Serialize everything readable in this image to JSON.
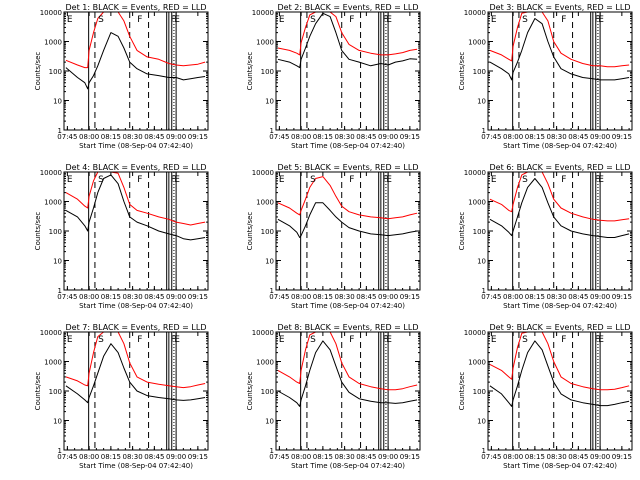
{
  "figure": {
    "background": "#ffffff",
    "axis_color": "#000000",
    "events_color": "#000000",
    "lld_color": "#ff0000"
  },
  "chart_data": [
    {
      "type": "line",
      "title": "Det 1: BLACK = Events, RED = LLD",
      "xlabel": "Start Time (08-Sep-04 07:42:40)",
      "ylabel": "Counts/sec",
      "yscale": "log",
      "ylim": [
        1,
        10000
      ],
      "yticks": [
        "1",
        "10",
        "100",
        "1000",
        "10000"
      ],
      "xticks": [
        "07:45",
        "08:00",
        "08:15",
        "08:30",
        "08:45",
        "09:00",
        "09:15"
      ],
      "xlim": [
        "07:42:40",
        "09:22:00"
      ],
      "flags": [
        "E",
        "S",
        "F",
        "F",
        "E"
      ],
      "x": [
        "07:44",
        "07:52",
        "07:57",
        "07:59",
        "08:00",
        "08:03",
        "08:06",
        "08:10",
        "08:15",
        "08:20",
        "08:24",
        "08:28",
        "08:33",
        "08:40",
        "08:48",
        "08:55",
        "09:00",
        "09:05",
        "09:10",
        "09:15",
        "09:20"
      ],
      "series": [
        {
          "name": "Events",
          "values": [
            130,
            60,
            40,
            25,
            40,
            70,
            150,
            500,
            2000,
            1500,
            600,
            200,
            120,
            80,
            70,
            60,
            60,
            50,
            55,
            60,
            65
          ]
        },
        {
          "name": "LLD",
          "values": [
            230,
            160,
            130,
            130,
            500,
            2000,
            6000,
            12000,
            12000,
            10000,
            5000,
            1500,
            500,
            300,
            250,
            180,
            160,
            150,
            160,
            170,
            200
          ]
        }
      ]
    },
    {
      "type": "line",
      "title": "Det 2: BLACK = Events, RED = LLD",
      "xlabel": "Start Time (08-Sep-04 07:42:40)",
      "ylabel": "Counts/sec",
      "yscale": "log",
      "ylim": [
        1,
        10000
      ],
      "yticks": [
        "1",
        "10",
        "100",
        "1000",
        "10000"
      ],
      "xticks": [
        "07:45",
        "08:00",
        "08:15",
        "08:30",
        "08:45",
        "09:00",
        "09:15"
      ],
      "xlim": [
        "07:42:40",
        "09:22:00"
      ],
      "flags": [
        "E",
        "S",
        "F",
        "F",
        "E"
      ],
      "x": [
        "07:44",
        "07:52",
        "07:57",
        "07:59",
        "08:00",
        "08:03",
        "08:06",
        "08:10",
        "08:15",
        "08:20",
        "08:24",
        "08:28",
        "08:33",
        "08:40",
        "08:48",
        "08:55",
        "09:00",
        "09:05",
        "09:10",
        "09:15",
        "09:20"
      ],
      "series": [
        {
          "name": "Events",
          "values": [
            250,
            200,
            150,
            130,
            250,
            600,
            1500,
            4000,
            9000,
            7000,
            2000,
            500,
            250,
            200,
            150,
            180,
            160,
            200,
            220,
            260,
            250
          ]
        },
        {
          "name": "LLD",
          "values": [
            600,
            500,
            400,
            350,
            900,
            3000,
            8000,
            12000,
            12000,
            11000,
            7000,
            2000,
            800,
            500,
            400,
            350,
            350,
            380,
            420,
            500,
            550
          ]
        }
      ]
    },
    {
      "type": "line",
      "title": "Det 3: BLACK = Events, RED = LLD",
      "xlabel": "Start Time (08-Sep-04 07:42:40)",
      "ylabel": "Counts/sec",
      "yscale": "log",
      "ylim": [
        1,
        10000
      ],
      "yticks": [
        "1",
        "10",
        "100",
        "1000",
        "10000"
      ],
      "xticks": [
        "07:45",
        "08:00",
        "08:15",
        "08:30",
        "08:45",
        "09:00",
        "09:15"
      ],
      "xlim": [
        "07:42:40",
        "09:22:00"
      ],
      "flags": [
        "E",
        "S",
        "F",
        "F",
        "E"
      ],
      "x": [
        "07:44",
        "07:52",
        "07:57",
        "07:59",
        "08:00",
        "08:03",
        "08:06",
        "08:10",
        "08:15",
        "08:20",
        "08:24",
        "08:28",
        "08:33",
        "08:40",
        "08:48",
        "08:55",
        "09:00",
        "09:05",
        "09:10",
        "09:15",
        "09:20"
      ],
      "series": [
        {
          "name": "Events",
          "values": [
            200,
            120,
            80,
            50,
            90,
            200,
            500,
            2000,
            6000,
            4000,
            1000,
            300,
            120,
            80,
            60,
            55,
            50,
            50,
            50,
            55,
            60
          ]
        },
        {
          "name": "LLD",
          "values": [
            500,
            350,
            250,
            220,
            700,
            3000,
            9000,
            12000,
            12000,
            11000,
            5000,
            1000,
            400,
            250,
            180,
            150,
            150,
            140,
            140,
            150,
            160
          ]
        }
      ]
    },
    {
      "type": "line",
      "title": "Det 4: BLACK = Events, RED = LLD",
      "xlabel": "Start Time (08-Sep-04 07:42:40)",
      "ylabel": "Counts/sec",
      "yscale": "log",
      "ylim": [
        1,
        10000
      ],
      "yticks": [
        "1",
        "10",
        "100",
        "1000",
        "10000"
      ],
      "xticks": [
        "07:45",
        "08:00",
        "08:15",
        "08:30",
        "08:45",
        "09:00",
        "09:15"
      ],
      "xlim": [
        "07:42:40",
        "09:22:00"
      ],
      "flags": [
        "E",
        "S",
        "F",
        "F",
        "E"
      ],
      "x": [
        "07:44",
        "07:52",
        "07:57",
        "07:59",
        "08:00",
        "08:03",
        "08:06",
        "08:10",
        "08:15",
        "08:20",
        "08:24",
        "08:28",
        "08:33",
        "08:40",
        "08:48",
        "08:55",
        "09:00",
        "09:05",
        "09:10",
        "09:15",
        "09:20"
      ],
      "series": [
        {
          "name": "Events",
          "values": [
            500,
            300,
            150,
            100,
            200,
            600,
            2000,
            6000,
            8000,
            4000,
            1000,
            300,
            200,
            150,
            100,
            80,
            70,
            55,
            50,
            55,
            60
          ]
        },
        {
          "name": "LLD",
          "values": [
            2000,
            1200,
            700,
            600,
            1500,
            5000,
            10000,
            12000,
            12000,
            9000,
            3000,
            800,
            500,
            400,
            300,
            250,
            200,
            180,
            160,
            180,
            200
          ]
        }
      ]
    },
    {
      "type": "line",
      "title": "Det 5: BLACK = Events, RED = LLD",
      "xlabel": "Start Time (08-Sep-04 07:42:40)",
      "ylabel": "Counts/sec",
      "yscale": "log",
      "ylim": [
        1,
        10000
      ],
      "yticks": [
        "1",
        "10",
        "100",
        "1000",
        "10000"
      ],
      "xticks": [
        "07:45",
        "08:00",
        "08:15",
        "08:30",
        "08:45",
        "09:00",
        "09:15"
      ],
      "xlim": [
        "07:42:40",
        "09:22:00"
      ],
      "flags": [
        "E",
        "S",
        "F",
        "F",
        "E"
      ],
      "x": [
        "07:44",
        "07:52",
        "07:57",
        "07:59",
        "08:00",
        "08:03",
        "08:06",
        "08:10",
        "08:15",
        "08:20",
        "08:24",
        "08:28",
        "08:33",
        "08:40",
        "08:48",
        "08:55",
        "09:00",
        "09:05",
        "09:10",
        "09:15",
        "09:20"
      ],
      "series": [
        {
          "name": "Events",
          "values": [
            250,
            150,
            90,
            60,
            70,
            150,
            350,
            900,
            900,
            500,
            300,
            200,
            130,
            100,
            80,
            75,
            70,
            75,
            80,
            90,
            100
          ]
        },
        {
          "name": "LLD",
          "values": [
            900,
            600,
            400,
            350,
            500,
            1200,
            3000,
            6000,
            7000,
            3500,
            1500,
            700,
            450,
            350,
            300,
            280,
            260,
            280,
            300,
            350,
            400
          ]
        }
      ]
    },
    {
      "type": "line",
      "title": "Det 6: BLACK = Events, RED = LLD",
      "xlabel": "Start Time (08-Sep-04 07:42:40)",
      "ylabel": "Counts/sec",
      "yscale": "log",
      "ylim": [
        1,
        10000
      ],
      "yticks": [
        "1",
        "10",
        "100",
        "1000",
        "10000"
      ],
      "xticks": [
        "07:45",
        "08:00",
        "08:15",
        "08:30",
        "08:45",
        "09:00",
        "09:15"
      ],
      "xlim": [
        "07:42:40",
        "09:22:00"
      ],
      "flags": [
        "E",
        "S",
        "F",
        "F",
        "E"
      ],
      "x": [
        "07:44",
        "07:52",
        "07:57",
        "07:59",
        "08:00",
        "08:03",
        "08:06",
        "08:10",
        "08:15",
        "08:20",
        "08:24",
        "08:28",
        "08:33",
        "08:40",
        "08:48",
        "08:55",
        "09:00",
        "09:05",
        "09:10",
        "09:15",
        "09:20"
      ],
      "series": [
        {
          "name": "Events",
          "values": [
            250,
            150,
            90,
            70,
            100,
            300,
            900,
            3000,
            6000,
            3000,
            900,
            300,
            150,
            100,
            80,
            70,
            65,
            60,
            60,
            70,
            80
          ]
        },
        {
          "name": "LLD",
          "values": [
            1200,
            800,
            500,
            450,
            800,
            3000,
            8000,
            12000,
            12000,
            10000,
            4000,
            1200,
            600,
            400,
            300,
            250,
            230,
            220,
            220,
            240,
            260
          ]
        }
      ]
    },
    {
      "type": "line",
      "title": "Det 7: BLACK = Events, RED = LLD",
      "xlabel": "Start Time (08-Sep-04 07:42:40)",
      "ylabel": "Counts/sec",
      "yscale": "log",
      "ylim": [
        1,
        10000
      ],
      "yticks": [
        "1",
        "10",
        "100",
        "1000",
        "10000"
      ],
      "xticks": [
        "07:45",
        "08:00",
        "08:15",
        "08:30",
        "08:45",
        "09:00",
        "09:15"
      ],
      "xlim": [
        "07:42:40",
        "09:22:00"
      ],
      "flags": [
        "E",
        "S",
        "F",
        "F",
        "E"
      ],
      "x": [
        "07:44",
        "07:52",
        "07:57",
        "07:59",
        "08:00",
        "08:03",
        "08:06",
        "08:10",
        "08:15",
        "08:20",
        "08:24",
        "08:28",
        "08:33",
        "08:40",
        "08:48",
        "08:55",
        "09:00",
        "09:05",
        "09:10",
        "09:15",
        "09:20"
      ],
      "series": [
        {
          "name": "Events",
          "values": [
            150,
            80,
            50,
            40,
            60,
            150,
            400,
            1500,
            4000,
            2000,
            600,
            200,
            100,
            70,
            60,
            55,
            50,
            48,
            50,
            55,
            60
          ]
        },
        {
          "name": "LLD",
          "values": [
            300,
            220,
            160,
            150,
            400,
            2000,
            7000,
            12000,
            12000,
            10000,
            4000,
            900,
            300,
            200,
            170,
            150,
            140,
            130,
            140,
            160,
            180
          ]
        }
      ]
    },
    {
      "type": "line",
      "title": "Det 8: BLACK = Events, RED = LLD",
      "xlabel": "Start Time (08-Sep-04 07:42:40)",
      "ylabel": "Counts/sec",
      "yscale": "log",
      "ylim": [
        1,
        10000
      ],
      "yticks": [
        "1",
        "10",
        "100",
        "1000",
        "10000"
      ],
      "xticks": [
        "07:45",
        "08:00",
        "08:15",
        "08:30",
        "08:45",
        "09:00",
        "09:15"
      ],
      "xlim": [
        "07:42:40",
        "09:22:00"
      ],
      "flags": [
        "E",
        "S",
        "F",
        "F",
        "E"
      ],
      "x": [
        "07:44",
        "07:52",
        "07:57",
        "07:59",
        "08:00",
        "08:03",
        "08:06",
        "08:10",
        "08:15",
        "08:20",
        "08:24",
        "08:28",
        "08:33",
        "08:40",
        "08:48",
        "08:55",
        "09:00",
        "09:05",
        "09:10",
        "09:15",
        "09:20"
      ],
      "series": [
        {
          "name": "Events",
          "values": [
            100,
            60,
            40,
            30,
            50,
            150,
            500,
            2000,
            5000,
            2500,
            700,
            200,
            90,
            55,
            45,
            40,
            40,
            38,
            40,
            45,
            50
          ]
        },
        {
          "name": "LLD",
          "values": [
            500,
            300,
            200,
            180,
            500,
            2500,
            8000,
            12000,
            12000,
            10000,
            4000,
            900,
            300,
            180,
            140,
            120,
            110,
            110,
            120,
            140,
            160
          ]
        }
      ]
    },
    {
      "type": "line",
      "title": "Det 9: BLACK = Events, RED = LLD",
      "xlabel": "Start Time (08-Sep-04 07:42:40)",
      "ylabel": "Counts/sec",
      "yscale": "log",
      "ylim": [
        1,
        10000
      ],
      "yticks": [
        "1",
        "10",
        "100",
        "1000",
        "10000"
      ],
      "xticks": [
        "07:45",
        "08:00",
        "08:15",
        "08:30",
        "08:45",
        "09:00",
        "09:15"
      ],
      "xlim": [
        "07:42:40",
        "09:22:00"
      ],
      "flags": [
        "E",
        "S",
        "F",
        "F",
        "E"
      ],
      "x": [
        "07:44",
        "07:52",
        "07:57",
        "07:59",
        "08:00",
        "08:03",
        "08:06",
        "08:10",
        "08:15",
        "08:20",
        "08:24",
        "08:28",
        "08:33",
        "08:40",
        "08:48",
        "08:55",
        "09:00",
        "09:05",
        "09:10",
        "09:15",
        "09:20"
      ],
      "series": [
        {
          "name": "Events",
          "values": [
            150,
            80,
            40,
            30,
            50,
            150,
            500,
            2000,
            5000,
            2500,
            700,
            200,
            80,
            50,
            40,
            35,
            32,
            32,
            35,
            40,
            45
          ]
        },
        {
          "name": "LLD",
          "values": [
            800,
            500,
            300,
            250,
            600,
            3000,
            9000,
            12000,
            12000,
            10000,
            4000,
            1000,
            300,
            180,
            140,
            120,
            110,
            110,
            115,
            130,
            150
          ]
        }
      ]
    }
  ]
}
